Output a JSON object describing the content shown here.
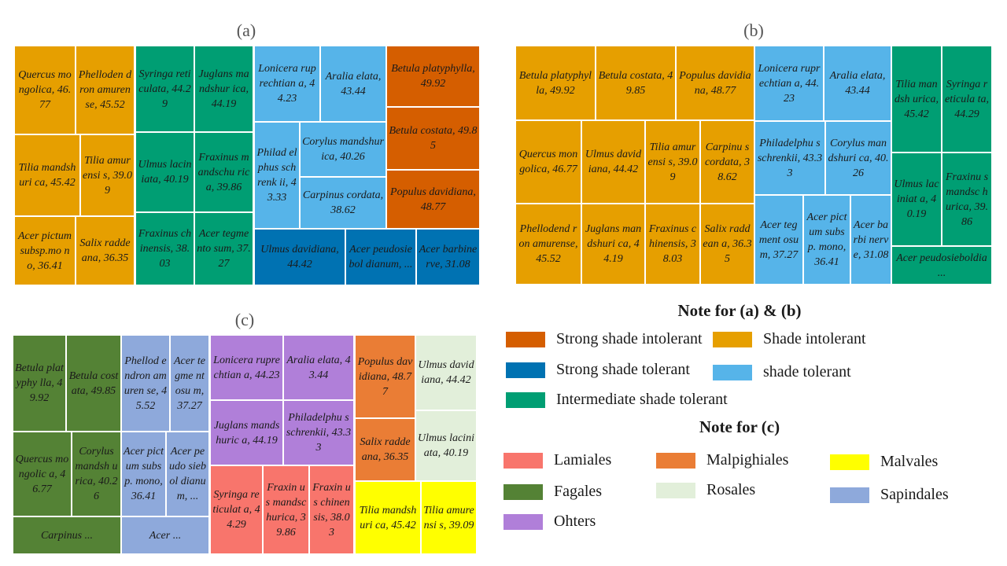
{
  "chart_data": [
    {
      "type": "treemap",
      "title": "(a)",
      "legend_ref": "Note for (a) & (b)",
      "cells": [
        {
          "label": "Quercus mongolica, 46.77",
          "species": "Quercus mongolica",
          "value": 46.77,
          "group": "Shade intolerant"
        },
        {
          "label": "Phelloden dron amurense, 45.52",
          "species": "Phellodendron amurense",
          "value": 45.52,
          "group": "Shade intolerant"
        },
        {
          "label": "Tilia mandshuri ca, 45.42",
          "species": "Tilia mandshurica",
          "value": 45.42,
          "group": "Shade intolerant"
        },
        {
          "label": "Tilia amurensi s, 39.09",
          "species": "Tilia amurensis",
          "value": 39.09,
          "group": "Shade intolerant"
        },
        {
          "label": "Acer pictum subsp.mo no, 36.41",
          "species": "Acer pictum subsp. mono",
          "value": 36.41,
          "group": "Shade intolerant"
        },
        {
          "label": "Salix raddeana, 36.35",
          "species": "Salix raddeana",
          "value": 36.35,
          "group": "Shade intolerant"
        },
        {
          "label": "Syringa reticulata, 44.29",
          "species": "Syringa reticulata",
          "value": 44.29,
          "group": "Intermediate shade tolerant"
        },
        {
          "label": "Juglans mandshur ica, 44.19",
          "species": "Juglans mandshurica",
          "value": 44.19,
          "group": "Intermediate shade tolerant"
        },
        {
          "label": "Ulmus laciniata, 40.19",
          "species": "Ulmus laciniata",
          "value": 40.19,
          "group": "Intermediate shade tolerant"
        },
        {
          "label": "Fraxinus mandschu rica, 39.86",
          "species": "Fraxinus mandschurica",
          "value": 39.86,
          "group": "Intermediate shade tolerant"
        },
        {
          "label": "Fraxinus chinensis, 38.03",
          "species": "Fraxinus chinensis",
          "value": 38.03,
          "group": "Intermediate shade tolerant"
        },
        {
          "label": "Acer tegmento sum, 37.27",
          "species": "Acer tegmentosum",
          "value": 37.27,
          "group": "Intermediate shade tolerant"
        },
        {
          "label": "Lonicera ruprechtian a, 44.23",
          "species": "Lonicera ruprechtiana",
          "value": 44.23,
          "group": "shade tolerant"
        },
        {
          "label": "Aralia elata, 43.44",
          "species": "Aralia elata",
          "value": 43.44,
          "group": "shade tolerant"
        },
        {
          "label": "Philad elphus schrenk ii, 43.33",
          "species": "Philadelphus schrenkii",
          "value": 43.33,
          "group": "shade tolerant"
        },
        {
          "label": "Corylus mandshurica, 40.26",
          "species": "Corylus mandshurica",
          "value": 40.26,
          "group": "shade tolerant"
        },
        {
          "label": "Carpinus cordata, 38.62",
          "species": "Carpinus cordata",
          "value": 38.62,
          "group": "shade tolerant"
        },
        {
          "label": "Betula platyphylla, 49.92",
          "species": "Betula platyphylla",
          "value": 49.92,
          "group": "Strong shade intolerant"
        },
        {
          "label": "Betula costata, 49.85",
          "species": "Betula costata",
          "value": 49.85,
          "group": "Strong shade intolerant"
        },
        {
          "label": "Populus davidiana, 48.77",
          "species": "Populus davidiana",
          "value": 48.77,
          "group": "Strong shade intolerant"
        },
        {
          "label": "Ulmus davidiana, 44.42",
          "species": "Ulmus davidiana",
          "value": 44.42,
          "group": "Strong shade tolerant"
        },
        {
          "label": "Acer peudosiebol dianum, ...",
          "species": "Acer peudosieboldianum",
          "value": null,
          "group": "Strong shade tolerant"
        },
        {
          "label": "Acer barbinerve, 31.08",
          "species": "Acer barbinerve",
          "value": 31.08,
          "group": "Strong shade tolerant"
        }
      ]
    },
    {
      "type": "treemap",
      "title": "(b)",
      "legend_ref": "Note for (a) & (b)",
      "cells": [
        {
          "label": "Betula platyphylla, 49.92",
          "species": "Betula platyphylla",
          "value": 49.92,
          "group": "Shade intolerant"
        },
        {
          "label": "Betula costata, 49.85",
          "species": "Betula costata",
          "value": 49.85,
          "group": "Shade intolerant"
        },
        {
          "label": "Populus davidiana, 48.77",
          "species": "Populus davidiana",
          "value": 48.77,
          "group": "Shade intolerant"
        },
        {
          "label": "Quercus mongolica, 46.77",
          "species": "Quercus mongolica",
          "value": 46.77,
          "group": "Shade intolerant"
        },
        {
          "label": "Ulmus davidiana, 44.42",
          "species": "Ulmus davidiana",
          "value": 44.42,
          "group": "Shade intolerant"
        },
        {
          "label": "Tilia amurensi s, 39.09",
          "species": "Tilia amurensis",
          "value": 39.09,
          "group": "Shade intolerant"
        },
        {
          "label": "Carpinu s cordata, 38.62",
          "species": "Carpinus cordata",
          "value": 38.62,
          "group": "Shade intolerant"
        },
        {
          "label": "Phellodend ron amurense, 45.52",
          "species": "Phellodendron amurense",
          "value": 45.52,
          "group": "Shade intolerant"
        },
        {
          "label": "Juglans mandshuri ca, 44.19",
          "species": "Juglans mandshurica",
          "value": 44.19,
          "group": "Shade intolerant"
        },
        {
          "label": "Fraxinus chinensis, 38.03",
          "species": "Fraxinus chinensis",
          "value": 38.03,
          "group": "Shade intolerant"
        },
        {
          "label": "Salix raddean a, 36.35",
          "species": "Salix raddeana",
          "value": 36.35,
          "group": "Shade intolerant"
        },
        {
          "label": "Lonicera ruprechtian a, 44.23",
          "species": "Lonicera ruprechtiana",
          "value": 44.23,
          "group": "shade tolerant"
        },
        {
          "label": "Aralia elata, 43.44",
          "species": "Aralia elata",
          "value": 43.44,
          "group": "shade tolerant"
        },
        {
          "label": "Philadelphu s schrenkii, 43.33",
          "species": "Philadelphus schrenkii",
          "value": 43.33,
          "group": "shade tolerant"
        },
        {
          "label": "Corylus mandshuri ca, 40.26",
          "species": "Corylus mandshurica",
          "value": 40.26,
          "group": "shade tolerant"
        },
        {
          "label": "Acer tegment osum, 37.27",
          "species": "Acer tegmentosum",
          "value": 37.27,
          "group": "shade tolerant"
        },
        {
          "label": "Acer pictum subsp. mono, 36.41",
          "species": "Acer pictum subsp. mono",
          "value": 36.41,
          "group": "shade tolerant"
        },
        {
          "label": "Acer barbi nerve, 31.08",
          "species": "Acer barbinerve",
          "value": 31.08,
          "group": "shade tolerant"
        },
        {
          "label": "Tilia mandsh urica, 45.42",
          "species": "Tilia mandshurica",
          "value": 45.42,
          "group": "Intermediate shade tolerant"
        },
        {
          "label": "Syringa reticula ta, 44.29",
          "species": "Syringa reticulata",
          "value": 44.29,
          "group": "Intermediate shade tolerant"
        },
        {
          "label": "Ulmus laciniat a, 40.19",
          "species": "Ulmus laciniata",
          "value": 40.19,
          "group": "Intermediate shade tolerant"
        },
        {
          "label": "Fraxinu s mandsc hurica, 39.86",
          "species": "Fraxinus mandschurica",
          "value": 39.86,
          "group": "Intermediate shade tolerant"
        },
        {
          "label": "Acer peudosieboldia ...",
          "species": "Acer peudosieboldianum",
          "value": null,
          "group": "Intermediate shade tolerant"
        }
      ]
    },
    {
      "type": "treemap",
      "title": "(c)",
      "legend_ref": "Note for (c)",
      "cells": [
        {
          "label": "Betula platyphy lla, 49.92",
          "species": "Betula platyphylla",
          "value": 49.92,
          "group": "Fagales"
        },
        {
          "label": "Betula costata, 49.85",
          "species": "Betula costata",
          "value": 49.85,
          "group": "Fagales"
        },
        {
          "label": "Quercus mongolic a, 46.77",
          "species": "Quercus mongolica",
          "value": 46.77,
          "group": "Fagales"
        },
        {
          "label": "Corylus mandsh urica, 40.26",
          "species": "Corylus mandshurica",
          "value": 40.26,
          "group": "Fagales"
        },
        {
          "label": "Carpinus ...",
          "species": "Carpinus",
          "value": null,
          "group": "Fagales"
        },
        {
          "label": "Phellod endron amuren se, 45.52",
          "species": "Phellodendron amurense",
          "value": 45.52,
          "group": "Sapindales"
        },
        {
          "label": "Acer tegme ntosu m, 37.27",
          "species": "Acer tegmentosum",
          "value": 37.27,
          "group": "Sapindales"
        },
        {
          "label": "Acer pictum subsp. mono, 36.41",
          "species": "Acer pictum subsp. mono",
          "value": 36.41,
          "group": "Sapindales"
        },
        {
          "label": "Acer peudo siebol dianu m, ...",
          "species": "Acer peudosieboldianum",
          "value": null,
          "group": "Sapindales"
        },
        {
          "label": "Acer ...",
          "species": "Acer",
          "value": null,
          "group": "Sapindales"
        },
        {
          "label": "Lonicera ruprechtian a, 44.23",
          "species": "Lonicera ruprechtiana",
          "value": 44.23,
          "group": "Ohters"
        },
        {
          "label": "Aralia elata, 43.44",
          "species": "Aralia elata",
          "value": 43.44,
          "group": "Ohters"
        },
        {
          "label": "Juglans mandshuric a, 44.19",
          "species": "Juglans mandshurica",
          "value": 44.19,
          "group": "Ohters"
        },
        {
          "label": "Philadelphu s schrenkii, 43.33",
          "species": "Philadelphus schrenkii",
          "value": 43.33,
          "group": "Ohters"
        },
        {
          "label": "Syringa reticulat a, 44.29",
          "species": "Syringa reticulata",
          "value": 44.29,
          "group": "Lamiales"
        },
        {
          "label": "Fraxin us mandsc hurica, 39.86",
          "species": "Fraxinus mandschurica",
          "value": 39.86,
          "group": "Lamiales"
        },
        {
          "label": "Fraxin us chinen sis, 38.03",
          "species": "Fraxinus chinensis",
          "value": 38.03,
          "group": "Lamiales"
        },
        {
          "label": "Populus davidiana, 48.77",
          "species": "Populus davidiana",
          "value": 48.77,
          "group": "Malpighiales"
        },
        {
          "label": "Salix raddeana, 36.35",
          "species": "Salix raddeana",
          "value": 36.35,
          "group": "Malpighiales"
        },
        {
          "label": "Ulmus davidiana, 44.42",
          "species": "Ulmus davidiana",
          "value": 44.42,
          "group": "Rosales"
        },
        {
          "label": "Ulmus laciniata, 40.19",
          "species": "Ulmus laciniata",
          "value": 40.19,
          "group": "Rosales"
        },
        {
          "label": "Tilia mandshuri ca, 45.42",
          "species": "Tilia mandshurica",
          "value": 45.42,
          "group": "Malvales"
        },
        {
          "label": "Tilia amurensi s, 39.09",
          "species": "Tilia amurensis",
          "value": 39.09,
          "group": "Malvales"
        }
      ]
    }
  ],
  "legends": {
    "ab": {
      "title": "Note for (a) & (b)",
      "items": [
        {
          "label": "Strong shade intolerant",
          "color": "#D55E00"
        },
        {
          "label": "Shade intolerant",
          "color": "#E69F00"
        },
        {
          "label": "Strong shade tolerant",
          "color": "#0072B2"
        },
        {
          "label": "shade tolerant",
          "color": "#56B4E9"
        },
        {
          "label": "Intermediate shade tolerant",
          "color": "#009E73"
        }
      ]
    },
    "c": {
      "title": "Note for (c)",
      "items": [
        {
          "label": "Lamiales",
          "color": "#F8756C"
        },
        {
          "label": "Malpighiales",
          "color": "#EA7D35"
        },
        {
          "label": "Malvales",
          "color": "#FFFF00"
        },
        {
          "label": "Fagales",
          "color": "#548235"
        },
        {
          "label": "Rosales",
          "color": "#E2EFDA"
        },
        {
          "label": "Sapindales",
          "color": "#8EA9DB"
        },
        {
          "label": "Ohters",
          "color": "#B07FD9"
        }
      ]
    }
  }
}
